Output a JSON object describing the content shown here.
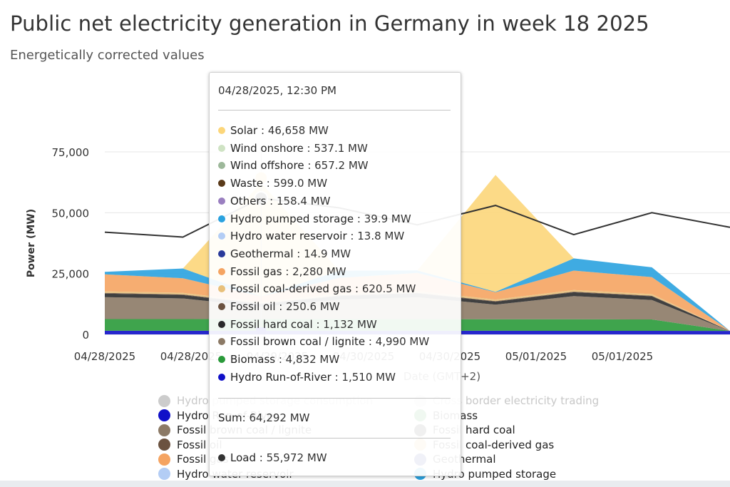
{
  "page": {
    "title": "Public net electricity generation in Germany in week 18 2025",
    "subtitle": "Energetically corrected values"
  },
  "chart_data": {
    "type": "area",
    "title": "Public net electricity generation in Germany in week 18 2025",
    "subtitle": "Energetically corrected values",
    "ylabel": "Power (MW)",
    "xlabel": "Date (GMT+2)",
    "ylim": [
      0,
      75000
    ],
    "yticks": [
      "0",
      "25,000",
      "50,000",
      "75,000"
    ],
    "xticks": [
      "04/28/2025",
      "04/28/2025",
      "04/29/2025",
      "04/30/2025",
      "04/30/2025",
      "05/01/2025",
      "05/01/2025"
    ],
    "x_hours": [
      0,
      12,
      24,
      36,
      48,
      60,
      72,
      84,
      96
    ],
    "series": [
      {
        "name": "Hydro Run-of-River",
        "color": "#1010c8",
        "values": [
          1500,
          1500,
          1510,
          1500,
          1490,
          1480,
          1470,
          1460,
          1450
        ]
      },
      {
        "name": "Biomass",
        "color": "#2a9a3a",
        "values": [
          4800,
          4800,
          4832,
          4800,
          4780,
          4760,
          4750,
          4700,
          0
        ]
      },
      {
        "name": "Fossil brown coal / lignite",
        "color": "#8c7a66",
        "values": [
          9000,
          8500,
          4990,
          8000,
          9000,
          6000,
          9500,
          8000,
          0
        ]
      },
      {
        "name": "Fossil hard coal",
        "color": "#2b2b2b",
        "values": [
          1500,
          1400,
          1132,
          1500,
          1600,
          1200,
          1600,
          1500,
          0
        ]
      },
      {
        "name": "Fossil oil",
        "color": "#6b5240",
        "values": [
          250,
          250,
          250.6,
          250,
          250,
          250,
          250,
          250,
          0
        ]
      },
      {
        "name": "Fossil coal-derived gas",
        "color": "#e8c07a",
        "values": [
          650,
          640,
          620.5,
          640,
          650,
          630,
          650,
          650,
          0
        ]
      },
      {
        "name": "Fossil gas",
        "color": "#f5a462",
        "values": [
          7000,
          6000,
          2280,
          6500,
          7500,
          3000,
          8000,
          7000,
          0
        ]
      },
      {
        "name": "Hydro pumped storage",
        "color": "#2aa2df",
        "values": [
          1000,
          4000,
          39.9,
          3000,
          1000,
          200,
          5000,
          4000,
          0
        ]
      },
      {
        "name": "Solar",
        "color": "#fcd67a",
        "values": [
          0,
          0,
          46658,
          0,
          0,
          48000,
          0,
          0,
          0
        ]
      },
      {
        "name": "Load",
        "color": "#333333",
        "values": [
          42000,
          40000,
          55972,
          52000,
          45000,
          53000,
          41000,
          50000,
          44000
        ]
      }
    ]
  },
  "tooltip": {
    "date": "04/28/2025, 12:30 PM",
    "rows": [
      {
        "label": "Solar",
        "value": "46,658 MW",
        "color": "#fcd67a"
      },
      {
        "label": "Wind onshore",
        "value": "537.1 MW",
        "color": "#cfe3c4"
      },
      {
        "label": "Wind offshore",
        "value": "657.2 MW",
        "color": "#9db89a"
      },
      {
        "label": "Waste",
        "value": "599.0 MW",
        "color": "#5a3a1a"
      },
      {
        "label": "Others",
        "value": "158.4 MW",
        "color": "#9a7fc0"
      },
      {
        "label": "Hydro pumped storage",
        "value": "39.9 MW",
        "color": "#2aa2df"
      },
      {
        "label": "Hydro water reservoir",
        "value": "13.8 MW",
        "color": "#b3cdf5"
      },
      {
        "label": "Geothermal",
        "value": "14.9 MW",
        "color": "#2a3a9a"
      },
      {
        "label": "Fossil gas",
        "value": "2,280 MW",
        "color": "#f5a462"
      },
      {
        "label": "Fossil coal-derived gas",
        "value": "620.5 MW",
        "color": "#e8c07a"
      },
      {
        "label": "Fossil oil",
        "value": "250.6 MW",
        "color": "#6b5240"
      },
      {
        "label": "Fossil hard coal",
        "value": "1,132 MW",
        "color": "#2b2b2b"
      },
      {
        "label": "Fossil brown coal / lignite",
        "value": "4,990 MW",
        "color": "#8c7a66"
      },
      {
        "label": "Biomass",
        "value": "4,832 MW",
        "color": "#2a9a3a"
      },
      {
        "label": "Hydro Run-of-River",
        "value": "1,510 MW",
        "color": "#1010c8"
      }
    ],
    "sum_label": "Sum",
    "sum_value": "64,292 MW",
    "load_label": "Load",
    "load_value": "55,972 MW",
    "load_color": "#333333"
  },
  "legend": {
    "left": [
      {
        "label": "Hydro pumped storage consumption",
        "color": "#cccccc",
        "faded": true
      },
      {
        "label": "Hydro Run-of-River",
        "color": "#1010c8",
        "faded": false
      },
      {
        "label": "Fossil brown coal / lignite",
        "color": "#8c7a66",
        "faded": false
      },
      {
        "label": "Fossil oil",
        "color": "#6b5240",
        "faded": false
      },
      {
        "label": "Fossil gas",
        "color": "#f5a462",
        "faded": false
      },
      {
        "label": "Hydro water reservoir",
        "color": "#b3cdf5",
        "faded": false
      }
    ],
    "right": [
      {
        "label": "Cross border electricity trading",
        "color": "#e0e0e0",
        "faded": true
      },
      {
        "label": "Biomass",
        "color": "#2a9a3a",
        "faded": false
      },
      {
        "label": "Fossil hard coal",
        "color": "#2b2b2b",
        "faded": false
      },
      {
        "label": "Fossil coal-derived gas",
        "color": "#e8c07a",
        "faded": false
      },
      {
        "label": "Geothermal",
        "color": "#2a3a9a",
        "faded": false
      },
      {
        "label": "Hydro pumped storage",
        "color": "#2aa2df",
        "faded": false
      }
    ]
  }
}
